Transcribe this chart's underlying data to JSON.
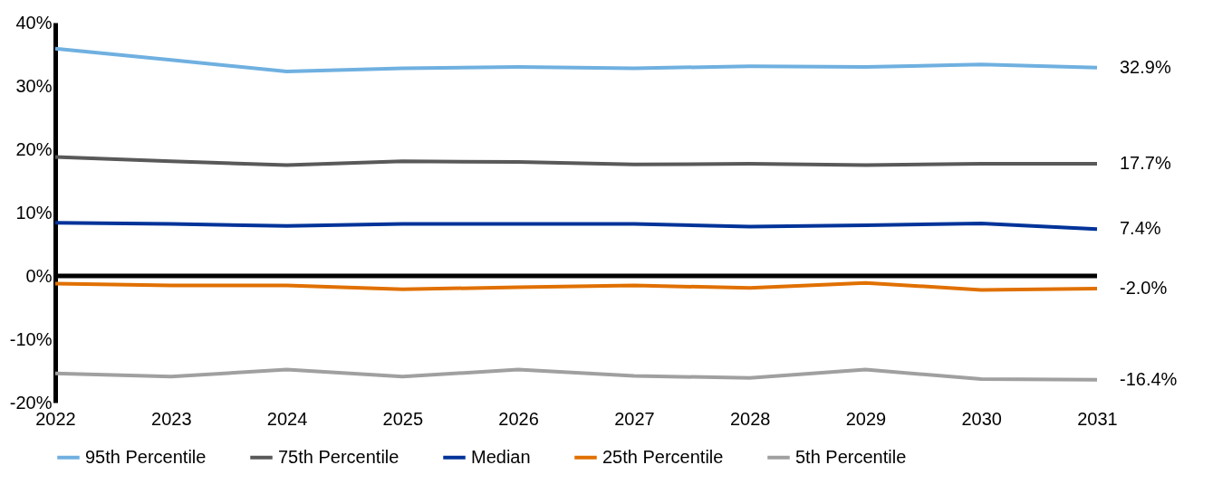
{
  "chart_data": {
    "type": "line",
    "categories": [
      "2022",
      "2023",
      "2024",
      "2025",
      "2026",
      "2027",
      "2028",
      "2029",
      "2030",
      "2031"
    ],
    "series": [
      {
        "name": "95th Percentile",
        "color": "#6fb0e0",
        "values": [
          35.9,
          34.1,
          32.3,
          32.8,
          33.0,
          32.8,
          33.1,
          33.0,
          33.4,
          32.9
        ],
        "value_labels": [
          null,
          null,
          null,
          null,
          null,
          null,
          null,
          null,
          null,
          "32.9%"
        ]
      },
      {
        "name": "75th Percentile",
        "color": "#595959",
        "values": [
          18.8,
          18.1,
          17.5,
          18.1,
          18.0,
          17.6,
          17.7,
          17.5,
          17.7,
          17.7
        ],
        "value_labels": [
          null,
          null,
          null,
          null,
          null,
          null,
          null,
          null,
          null,
          "17.7%"
        ]
      },
      {
        "name": "Median",
        "color": "#003399",
        "values": [
          8.4,
          8.2,
          7.9,
          8.2,
          8.2,
          8.2,
          7.8,
          8.0,
          8.3,
          7.4
        ],
        "value_labels": [
          null,
          null,
          null,
          null,
          null,
          null,
          null,
          null,
          null,
          "7.4%"
        ]
      },
      {
        "name": "25th Percentile",
        "color": "#e07000",
        "values": [
          -1.2,
          -1.5,
          -1.5,
          -2.1,
          -1.8,
          -1.5,
          -1.9,
          -1.1,
          -2.2,
          -2.0
        ],
        "value_labels": [
          null,
          null,
          null,
          null,
          null,
          null,
          null,
          null,
          null,
          "-2.0%"
        ]
      },
      {
        "name": "5th Percentile",
        "color": "#a0a0a0",
        "values": [
          -15.4,
          -15.9,
          -14.8,
          -15.9,
          -14.8,
          -15.8,
          -16.1,
          -14.8,
          -16.3,
          -16.4
        ],
        "value_labels": [
          null,
          null,
          null,
          null,
          null,
          null,
          null,
          null,
          null,
          "-16.4%"
        ]
      }
    ],
    "ylim": [
      -20,
      40
    ],
    "yticks": [
      {
        "value": -20,
        "label": "-20%"
      },
      {
        "value": -10,
        "label": "-10%"
      },
      {
        "value": 0,
        "label": "0%"
      },
      {
        "value": 10,
        "label": "10%"
      },
      {
        "value": 20,
        "label": "20%"
      },
      {
        "value": 30,
        "label": "30%"
      },
      {
        "value": 40,
        "label": "40%"
      }
    ],
    "ref_lines": [
      {
        "axis": "y",
        "value": 0,
        "color": "#000000"
      }
    ],
    "grid": false,
    "legend": "bottom",
    "marker": "none",
    "line_style": "solid"
  }
}
